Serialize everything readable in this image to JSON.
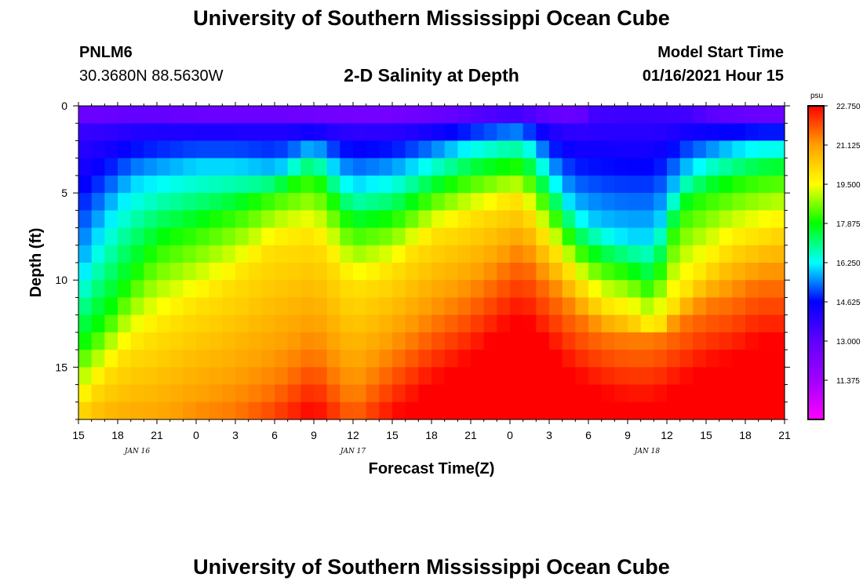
{
  "header": {
    "title": "University of Southern Mississippi Ocean Cube",
    "station_id": "PNLM6",
    "coords": "30.3680N 88.5630W",
    "plot_title": "2-D Salinity at Depth",
    "model_label": "Model Start Time",
    "model_time": "01/16/2021 Hour 15"
  },
  "footer": {
    "title": "University of Southern Mississippi Ocean Cube"
  },
  "chart_data": {
    "type": "heatmap",
    "title": "2-D Salinity at Depth",
    "xlabel": "Forecast Time(Z)",
    "ylabel": "Depth (ft)",
    "units": "psu",
    "x_hours_from_start": [
      0,
      54
    ],
    "ylim": [
      0,
      18
    ],
    "x_ticks": [
      "15",
      "18",
      "21",
      "0",
      "3",
      "6",
      "9",
      "12",
      "15",
      "18",
      "21",
      "0",
      "3",
      "6",
      "9",
      "12",
      "15",
      "18",
      "21"
    ],
    "y_ticks": [
      0,
      5,
      10,
      15
    ],
    "y_tick_labels": [
      "0",
      "5",
      "10",
      "15"
    ],
    "dates": [
      {
        "label": "JAN 16",
        "hour": 4.5
      },
      {
        "label": "JAN 17",
        "hour": 21
      },
      {
        "label": "JAN 18",
        "hour": 43.5
      }
    ],
    "colorbar": {
      "min": 9.75,
      "max": 22.75,
      "tick_labels": [
        "22.750",
        "21.125",
        "19.500",
        "17.875",
        "16.250",
        "14.625",
        "13.000",
        "11.375"
      ],
      "tick_values": [
        22.75,
        21.125,
        19.5,
        17.875,
        16.25,
        14.625,
        13.0,
        11.375
      ],
      "colors": [
        "#ff00ff",
        "#a000ff",
        "#6000ff",
        "#0000ff",
        "#00ffff",
        "#00ff00",
        "#ffff00",
        "#ffa000",
        "#ff0000"
      ]
    },
    "iso_depth_ft": {
      "hours": [
        0,
        2,
        4,
        6,
        9,
        12,
        15,
        18,
        21,
        24,
        27,
        30,
        33,
        34,
        35,
        38,
        40,
        42,
        44,
        46,
        48,
        50,
        52,
        54
      ],
      "s13_5": [
        0.8,
        0.8,
        0.7,
        0.7,
        0.8,
        0.8,
        0.8,
        0.9,
        1.0,
        1.0,
        0.8,
        0.6,
        0.5,
        0.5,
        0.6,
        0.8,
        0.3,
        0.2,
        0.2,
        0.4,
        0.6,
        0.7,
        0.8,
        0.8
      ],
      "s16": [
        10.0,
        6.5,
        4.5,
        4.0,
        3.5,
        3.5,
        3.8,
        2.5,
        4.5,
        4.0,
        3.0,
        2.2,
        1.8,
        1.8,
        2.5,
        6.0,
        7.0,
        7.5,
        7.5,
        4.0,
        3.0,
        2.5,
        2.2,
        2.2
      ],
      "s18": [
        14.0,
        12.5,
        10.0,
        8.0,
        7.0,
        6.0,
        5.0,
        4.0,
        7.0,
        6.5,
        5.0,
        4.0,
        3.5,
        3.5,
        4.5,
        8.0,
        9.0,
        9.5,
        10.5,
        6.0,
        5.0,
        4.5,
        4.0,
        3.8
      ],
      "s20": [
        17.5,
        15.5,
        14.0,
        13.0,
        11.5,
        10.0,
        8.0,
        7.5,
        10.5,
        9.5,
        7.5,
        6.5,
        5.5,
        5.5,
        7.0,
        10.0,
        11.5,
        12.0,
        13.0,
        11.0,
        9.5,
        8.0,
        7.5,
        7.0
      ],
      "s21_5": [
        20.0,
        20.0,
        20.0,
        20.0,
        18.5,
        17.5,
        16.0,
        14.0,
        17.0,
        14.5,
        12.5,
        11.0,
        9.0,
        8.5,
        9.5,
        12.0,
        13.0,
        13.5,
        13.5,
        12.5,
        11.5,
        11.0,
        10.0,
        10.0
      ]
    }
  }
}
